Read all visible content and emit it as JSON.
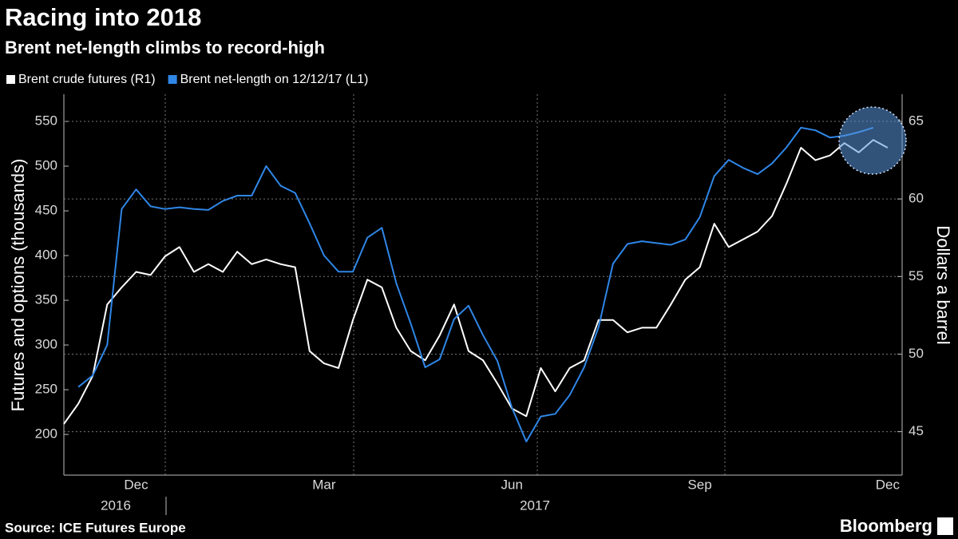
{
  "chart_data": {
    "type": "line",
    "title": "Racing into 2018",
    "subtitle": "Brent net-length climbs to record-high",
    "ylabel": "Futures and options (thousands)",
    "y2label": "Dollars a barrel",
    "source": "Source: ICE Futures Europe",
    "brand": "Bloomberg",
    "year_labels": [
      "2016",
      "2017"
    ],
    "categories": [
      null,
      null,
      null,
      null,
      null,
      "Dec",
      null,
      null,
      null,
      null,
      null,
      null,
      null,
      null,
      null,
      null,
      null,
      null,
      "Mar",
      null,
      null,
      null,
      null,
      null,
      null,
      null,
      null,
      null,
      null,
      null,
      null,
      "Jun",
      null,
      null,
      null,
      null,
      null,
      null,
      null,
      null,
      null,
      null,
      null,
      null,
      "Sep",
      null,
      null,
      null,
      null,
      null,
      null,
      null,
      null,
      null,
      null,
      null,
      null,
      "Dec",
      null
    ],
    "ylim": [
      154.5,
      580.4
    ],
    "yticks": [
      200,
      250,
      300,
      350,
      400,
      450,
      500,
      550
    ],
    "y2lim": [
      42.2,
      66.75
    ],
    "y2ticks": [
      45,
      50,
      55,
      60,
      65
    ],
    "grid": true,
    "legend": "top-left",
    "series": [
      {
        "name": "Brent crude futures (R1)",
        "color": "#ffffff",
        "axis": "y2",
        "values": [
          45.5,
          46.8,
          48.6,
          53.2,
          54.3,
          55.3,
          55.1,
          56.3,
          56.9,
          55.3,
          55.8,
          55.3,
          56.6,
          55.8,
          56.1,
          55.8,
          55.6,
          50.2,
          49.4,
          49.1,
          52.2,
          54.8,
          54.3,
          51.7,
          50.2,
          49.6,
          51.2,
          53.2,
          50.2,
          49.6,
          48.1,
          46.5,
          46.0,
          49.1,
          47.6,
          49.1,
          49.6,
          52.2,
          52.2,
          51.4,
          51.7,
          51.7,
          53.2,
          54.8,
          55.6,
          58.4,
          56.9,
          57.4,
          57.9,
          58.9,
          61.0,
          63.3,
          62.5,
          62.8,
          63.6,
          63.0,
          63.8,
          63.3,
          null
        ]
      },
      {
        "name": "Brent net-length on 12/12/17 (L1)",
        "color": "#2f86e6",
        "values": [
          null,
          253,
          266,
          300,
          452,
          474,
          455,
          452,
          454,
          452,
          451,
          461,
          467,
          467,
          500,
          478,
          470,
          436,
          400,
          382,
          382,
          420,
          431,
          369,
          324,
          275,
          284,
          329,
          344,
          311,
          282,
          230,
          192,
          220,
          223,
          244,
          275,
          320,
          391,
          413,
          416,
          414,
          412,
          418,
          443,
          489,
          507,
          498,
          491,
          503,
          521,
          543,
          540,
          532,
          534,
          538,
          543,
          null,
          null
        ]
      }
    ]
  }
}
